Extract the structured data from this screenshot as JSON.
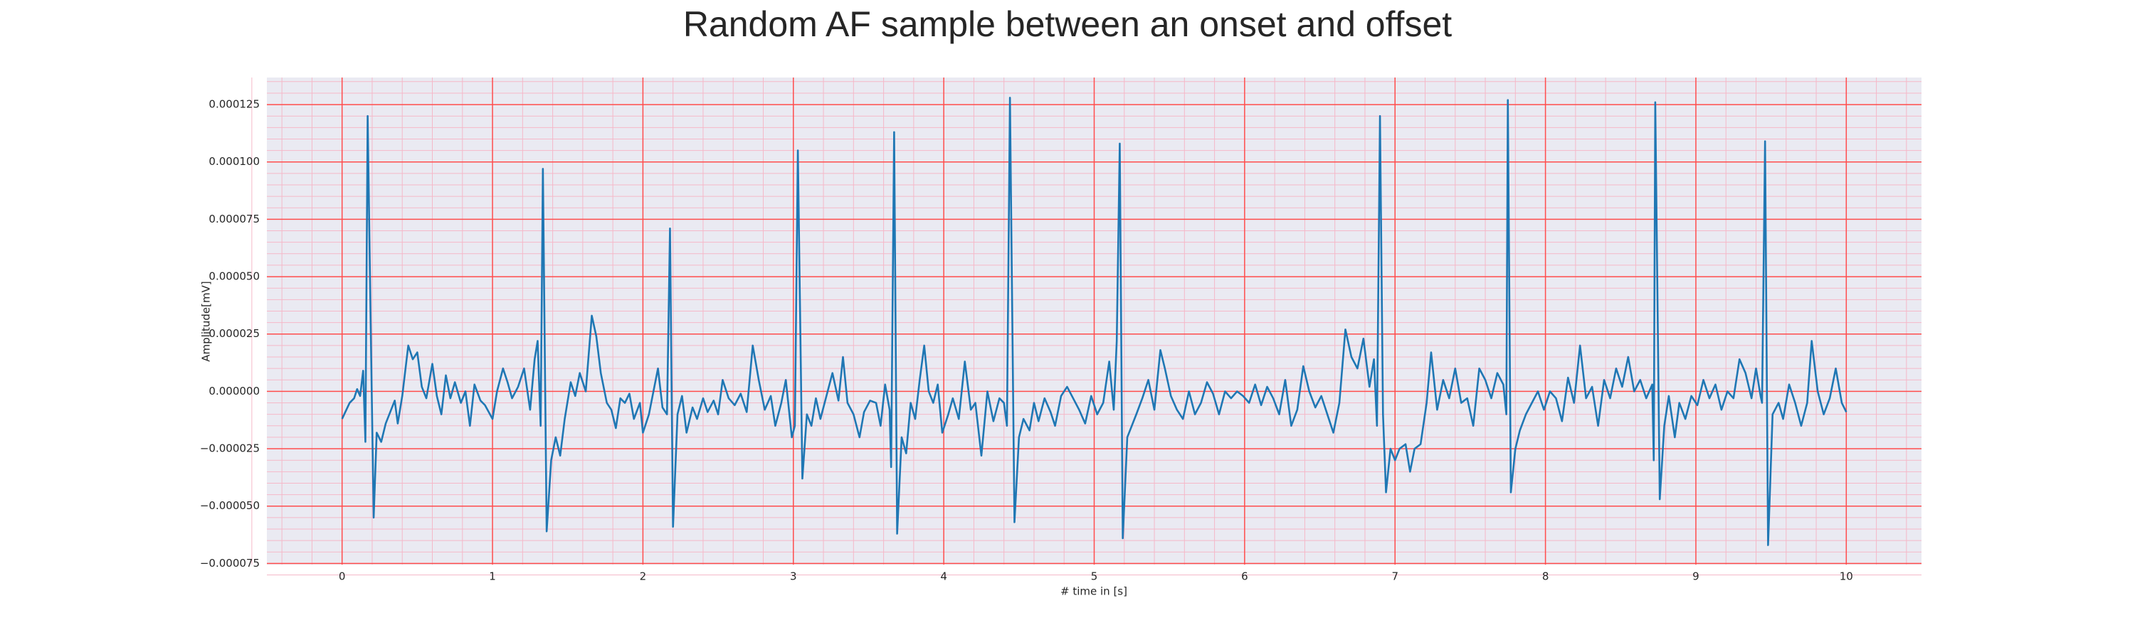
{
  "chart_data": {
    "type": "line",
    "title": "Random AF sample between an onset and offset",
    "xlabel": "# time in [s]",
    "ylabel": "Amplitude[mV]",
    "xlim": [
      -0.5,
      10.5
    ],
    "ylim": [
      -7.55e-05,
      0.0001368
    ],
    "xticks": [
      0,
      1,
      2,
      3,
      4,
      5,
      6,
      7,
      8,
      9,
      10
    ],
    "yticks": [
      {
        "value": -7.5e-05,
        "label": "−0.000075"
      },
      {
        "value": -5e-05,
        "label": "−0.000050"
      },
      {
        "value": -2.5e-05,
        "label": "−0.000025"
      },
      {
        "value": 0,
        "label": "0.000000"
      },
      2.5e-05,
      {
        "value": 5e-05,
        "label": "0.000050"
      },
      7.5e-05,
      {
        "value": 0.0001,
        "label": "0.000100"
      },
      0.000125
    ],
    "grid": true,
    "minor_grid": true,
    "background": "#eaeaf2",
    "grid_color": "#ff4d4d",
    "minor_grid_color": "#f5b8c8",
    "series": [
      {
        "color": "#1f77b4",
        "x": [
          0,
          0.05,
          0.08,
          0.1,
          0.12,
          0.14,
          0.155,
          0.17,
          0.19,
          0.21,
          0.23,
          0.26,
          0.29,
          0.32,
          0.35,
          0.37,
          0.4,
          0.44,
          0.47,
          0.5,
          0.53,
          0.56,
          0.6,
          0.63,
          0.66,
          0.69,
          0.72,
          0.75,
          0.79,
          0.82,
          0.85,
          0.88,
          0.92,
          0.95,
          1,
          1.03,
          1.07,
          1.1,
          1.13,
          1.17,
          1.21,
          1.25,
          1.28,
          1.3,
          1.32,
          1.335,
          1.36,
          1.39,
          1.42,
          1.45,
          1.48,
          1.52,
          1.55,
          1.58,
          1.62,
          1.66,
          1.69,
          1.72,
          1.76,
          1.79,
          1.82,
          1.85,
          1.88,
          1.91,
          1.94,
          1.98,
          2,
          2.04,
          2.07,
          2.1,
          2.13,
          2.16,
          2.18,
          2.2,
          2.23,
          2.26,
          2.29,
          2.33,
          2.36,
          2.4,
          2.43,
          2.47,
          2.5,
          2.53,
          2.57,
          2.61,
          2.65,
          2.69,
          2.73,
          2.77,
          2.81,
          2.85,
          2.88,
          2.92,
          2.95,
          2.99,
          3.01,
          3.03,
          3.06,
          3.09,
          3.12,
          3.15,
          3.18,
          3.22,
          3.26,
          3.3,
          3.33,
          3.36,
          3.4,
          3.44,
          3.47,
          3.51,
          3.55,
          3.58,
          3.61,
          3.64,
          3.65,
          3.67,
          3.69,
          3.72,
          3.75,
          3.78,
          3.81,
          3.84,
          3.87,
          3.9,
          3.93,
          3.96,
          3.99,
          4.03,
          4.06,
          4.1,
          4.14,
          4.18,
          4.21,
          4.25,
          4.29,
          4.33,
          4.37,
          4.4,
          4.42,
          4.44,
          4.47,
          4.5,
          4.53,
          4.57,
          4.6,
          4.63,
          4.67,
          4.71,
          4.74,
          4.78,
          4.82,
          4.86,
          4.9,
          4.94,
          4.98,
          5.02,
          5.06,
          5.1,
          5.13,
          5.15,
          5.17,
          5.19,
          5.22,
          5.25,
          5.28,
          5.32,
          5.36,
          5.4,
          5.44,
          5.47,
          5.51,
          5.55,
          5.59,
          5.63,
          5.67,
          5.71,
          5.75,
          5.79,
          5.83,
          5.87,
          5.91,
          5.95,
          5.99,
          6.03,
          6.07,
          6.11,
          6.15,
          6.19,
          6.23,
          6.27,
          6.31,
          6.35,
          6.39,
          6.43,
          6.47,
          6.51,
          6.55,
          6.59,
          6.63,
          6.67,
          6.71,
          6.75,
          6.79,
          6.83,
          6.86,
          6.88,
          6.9,
          6.92,
          6.94,
          6.97,
          7,
          7.03,
          7.07,
          7.1,
          7.13,
          7.17,
          7.21,
          7.24,
          7.28,
          7.32,
          7.36,
          7.4,
          7.44,
          7.48,
          7.52,
          7.56,
          7.6,
          7.64,
          7.68,
          7.72,
          7.74,
          7.75,
          7.77,
          7.8,
          7.83,
          7.87,
          7.91,
          7.95,
          7.99,
          8.03,
          8.07,
          8.11,
          8.15,
          8.19,
          8.23,
          8.27,
          8.31,
          8.35,
          8.39,
          8.43,
          8.47,
          8.51,
          8.55,
          8.59,
          8.63,
          8.67,
          8.71,
          8.72,
          8.73,
          8.76,
          8.79,
          8.82,
          8.86,
          8.89,
          8.93,
          8.97,
          9.01,
          9.05,
          9.09,
          9.13,
          9.17,
          9.21,
          9.25,
          9.29,
          9.33,
          9.37,
          9.4,
          9.43,
          9.44,
          9.46,
          9.48,
          9.51,
          9.55,
          9.58,
          9.62,
          9.66,
          9.7,
          9.74,
          9.77,
          9.81,
          9.85,
          9.89,
          9.93,
          9.97,
          10
        ],
        "values": [
          -1.2e-05,
          -5e-06,
          -3e-06,
          1e-06,
          -2e-06,
          9e-06,
          -2.2e-05,
          0.00012,
          3e-05,
          -5.5e-05,
          -1.8e-05,
          -2.2e-05,
          -1.4e-05,
          -9e-06,
          -4e-06,
          -1.4e-05,
          -2e-06,
          2e-05,
          1.4e-05,
          1.7e-05,
          2e-06,
          -3e-06,
          1.2e-05,
          -2e-06,
          -1e-05,
          7e-06,
          -3e-06,
          4e-06,
          -5e-06,
          0,
          -1.5e-05,
          3e-06,
          -4e-06,
          -6e-06,
          -1.2e-05,
          0,
          1e-05,
          4e-06,
          -3e-06,
          2e-06,
          1e-05,
          -8e-06,
          1.4e-05,
          2.2e-05,
          -1.5e-05,
          9.7e-05,
          -6.1e-05,
          -3e-05,
          -2e-05,
          -2.8e-05,
          -1.2e-05,
          4e-06,
          -2e-06,
          8e-06,
          0,
          3.3e-05,
          2.4e-05,
          8e-06,
          -5e-06,
          -8e-06,
          -1.6e-05,
          -3e-06,
          -5e-06,
          -1e-06,
          -1.2e-05,
          -5e-06,
          -1.8e-05,
          -1e-05,
          0,
          1e-05,
          -7e-06,
          -1e-05,
          7.1e-05,
          -5.9e-05,
          -1e-05,
          -2e-06,
          -1.8e-05,
          -7e-06,
          -1.2e-05,
          -3e-06,
          -9e-06,
          -4e-06,
          -1e-05,
          5e-06,
          -3e-06,
          -6e-06,
          -1e-06,
          -9e-06,
          2e-05,
          5e-06,
          -8e-06,
          -2e-06,
          -1.5e-05,
          -5e-06,
          5e-06,
          -2e-05,
          -1.5e-05,
          0.000105,
          -3.8e-05,
          -1e-05,
          -1.5e-05,
          -3e-06,
          -1.2e-05,
          -2e-06,
          8e-06,
          -4e-06,
          1.5e-05,
          -5e-06,
          -1e-05,
          -2e-05,
          -9e-06,
          -4e-06,
          -5e-06,
          -1.5e-05,
          3e-06,
          -8e-06,
          -3.3e-05,
          0.000113,
          -6.2e-05,
          -2e-05,
          -2.7e-05,
          -5e-06,
          -1.2e-05,
          5e-06,
          2e-05,
          0,
          -5e-06,
          3e-06,
          -1.8e-05,
          -1e-05,
          -3e-06,
          -1.2e-05,
          1.3e-05,
          -8e-06,
          -5e-06,
          -2.8e-05,
          0,
          -1.3e-05,
          -3e-06,
          -5e-06,
          -1.5e-05,
          0.000128,
          -5.7e-05,
          -2e-05,
          -1.2e-05,
          -1.7e-05,
          -5e-06,
          -1.3e-05,
          -3e-06,
          -9e-06,
          -1.5e-05,
          -2e-06,
          2e-06,
          -3e-06,
          -8e-06,
          -1.4e-05,
          -2e-06,
          -1e-05,
          -5e-06,
          1.3e-05,
          -8e-06,
          2.2e-05,
          0.000108,
          -6.4e-05,
          -2e-05,
          -1.5e-05,
          -1e-05,
          -3e-06,
          5e-06,
          -8e-06,
          1.8e-05,
          1e-05,
          -2e-06,
          -8e-06,
          -1.2e-05,
          0,
          -1e-05,
          -5e-06,
          4e-06,
          -1e-06,
          -1e-05,
          0,
          -3e-06,
          0,
          -2e-06,
          -5e-06,
          3e-06,
          -6e-06,
          2e-06,
          -3e-06,
          -1e-05,
          5e-06,
          -1.5e-05,
          -8e-06,
          1.1e-05,
          0,
          -7e-06,
          -2e-06,
          -1e-05,
          -1.8e-05,
          -5e-06,
          2.7e-05,
          1.5e-05,
          1e-05,
          2.3e-05,
          2e-06,
          1.4e-05,
          -1.5e-05,
          0.00012,
          -1e-05,
          -4.4e-05,
          -2.5e-05,
          -3e-05,
          -2.5e-05,
          -2.3e-05,
          -3.5e-05,
          -2.5e-05,
          -2.3e-05,
          -5e-06,
          1.7e-05,
          -8e-06,
          5e-06,
          -3e-06,
          1e-05,
          -5e-06,
          -3e-06,
          -1.5e-05,
          1e-05,
          5e-06,
          -3e-06,
          8e-06,
          3e-06,
          -1e-05,
          0.000127,
          -4.4e-05,
          -2.5e-05,
          -1.7e-05,
          -1e-05,
          -5e-06,
          0,
          -8e-06,
          0,
          -3e-06,
          -1.3e-05,
          6e-06,
          -5e-06,
          2e-05,
          -3e-06,
          2e-06,
          -1.5e-05,
          5e-06,
          -3e-06,
          1e-05,
          2e-06,
          1.5e-05,
          0,
          5e-06,
          -3e-06,
          3e-06,
          -3e-05,
          0.000126,
          -4.7e-05,
          -1.5e-05,
          -2e-06,
          -2e-05,
          -5e-06,
          -1.2e-05,
          -2e-06,
          -6e-06,
          5e-06,
          -3e-06,
          3e-06,
          -8e-06,
          0,
          -3e-06,
          1.4e-05,
          8e-06,
          -3e-06,
          1e-05,
          -2e-06,
          -5e-06,
          0.000109,
          -6.7e-05,
          -1e-05,
          -5e-06,
          -1.2e-05,
          3e-06,
          -5e-06,
          -1.5e-05,
          -5e-06,
          2.2e-05,
          0,
          -1e-05,
          -3e-06,
          1e-05,
          -5e-06,
          -9e-06
        ]
      }
    ]
  }
}
